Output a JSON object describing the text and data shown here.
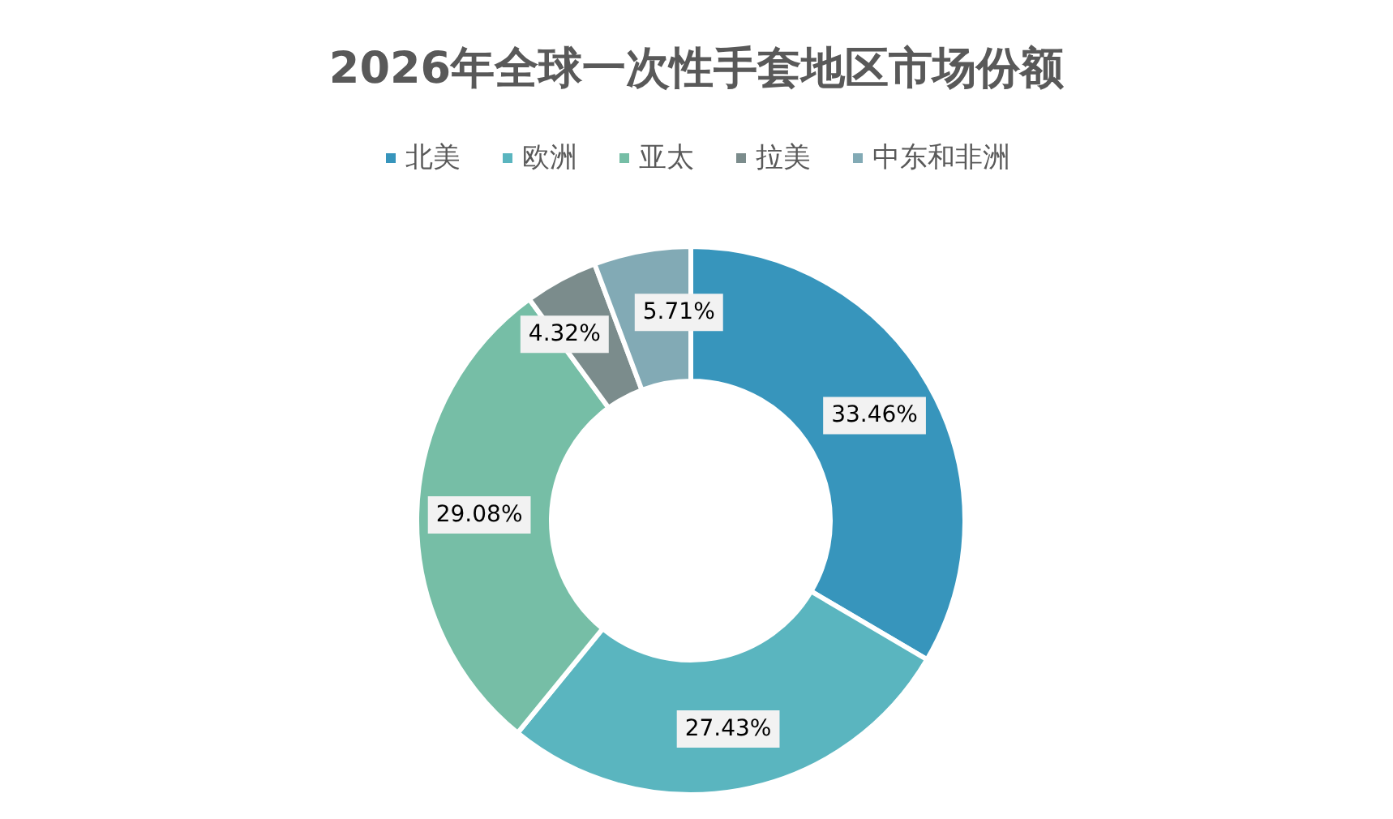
{
  "chart_data": {
    "type": "donut",
    "title": "2026年全球一次性手套地区市场份额",
    "categories": [
      "北美",
      "欧洲",
      "亚太",
      "拉美",
      "中东和非洲"
    ],
    "values": [
      33.46,
      27.43,
      29.08,
      4.32,
      5.71
    ],
    "value_labels": [
      "33.46%",
      "27.43%",
      "29.08%",
      "4.32%",
      "5.71%"
    ],
    "colors": [
      "#3795bc",
      "#5ab5bf",
      "#76bea6",
      "#7b8c8c",
      "#82aab5"
    ],
    "legend": "top"
  }
}
